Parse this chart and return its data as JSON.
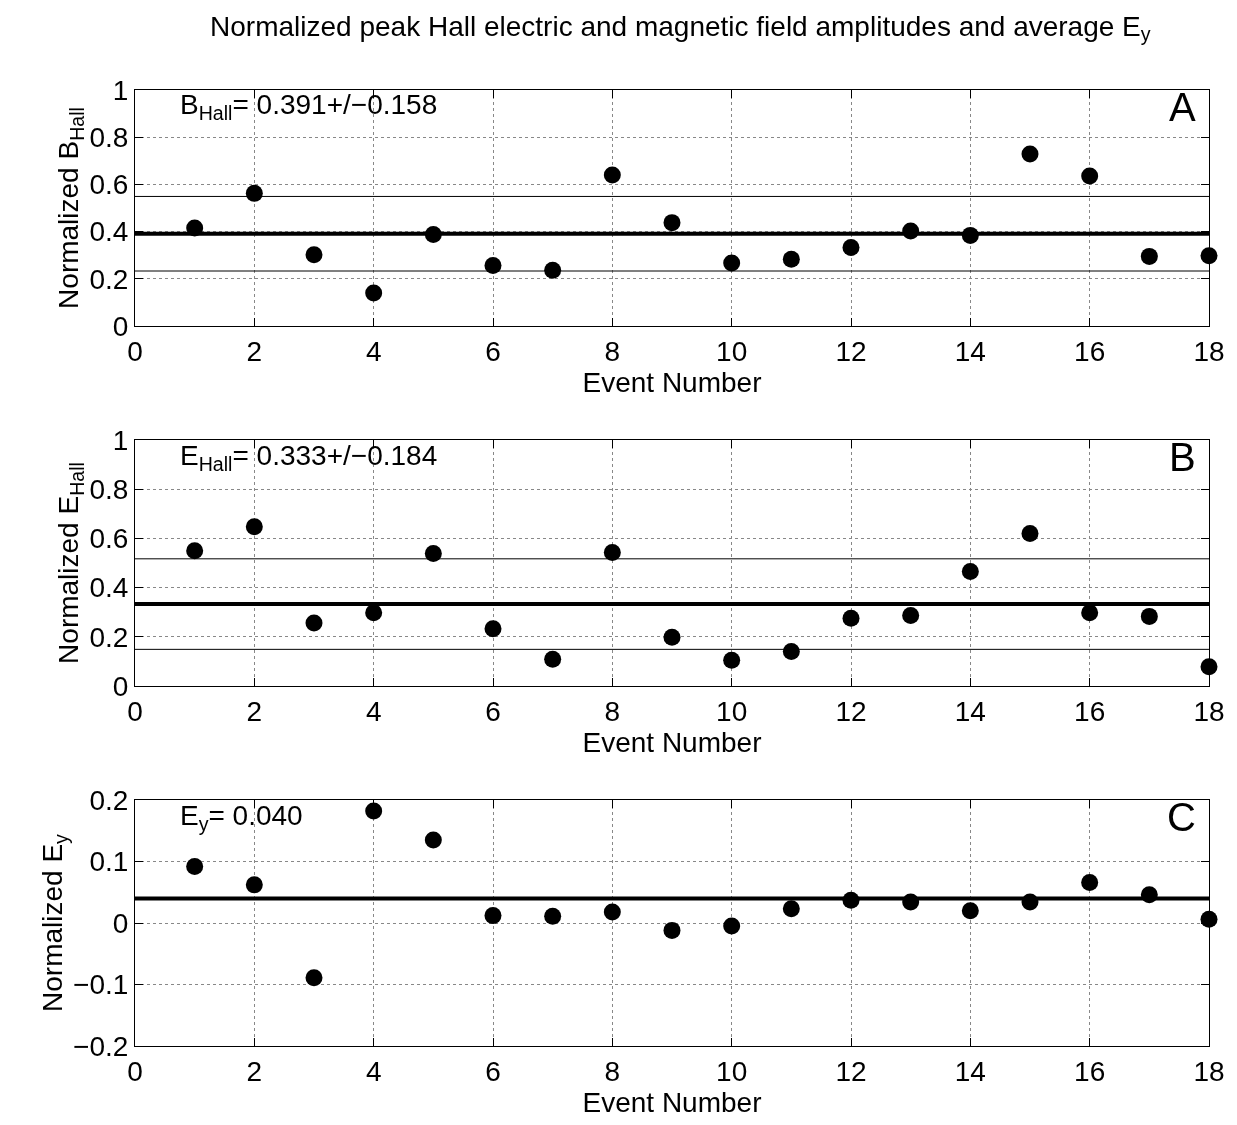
{
  "chart_data": [
    {
      "type": "scatter",
      "title": "Normalized peak Hall electric and magnetic field amplitudes and average E$_{y}$",
      "xlabel": "Event Number",
      "ylabel": "Normalized B$_{Hall}$",
      "x": [
        1,
        2,
        3,
        4,
        5,
        6,
        7,
        8,
        9,
        10,
        11,
        12,
        13,
        14,
        15,
        16,
        17,
        18
      ],
      "series": [
        {
          "color": "#000000",
          "values": [
            0.415,
            0.562,
            0.302,
            0.14,
            0.388,
            0.256,
            0.236,
            0.64,
            0.438,
            0.267,
            0.283,
            0.333,
            0.403,
            0.384,
            0.729,
            0.636,
            0.295,
            0.298
          ]
        }
      ],
      "xlim": [
        0,
        18
      ],
      "xticks": [
        0,
        2,
        4,
        6,
        8,
        10,
        12,
        14,
        16,
        18
      ],
      "ylim": [
        0,
        1
      ],
      "yticks": [
        0,
        0.2,
        0.4,
        0.6,
        0.8,
        1
      ],
      "grid": true,
      "marker": "circle",
      "ref_lines": [
        {
          "axis": "y",
          "value": 0.391,
          "color": "#000000"
        },
        {
          "axis": "y",
          "value": 0.549,
          "color": "#000000"
        },
        {
          "axis": "y",
          "value": 0.233,
          "color": "#000000"
        }
      ],
      "annotations": [
        "B$_{Hall}$= 0.391+/−0.158",
        "A"
      ]
    },
    {
      "type": "scatter",
      "xlabel": "Event Number",
      "ylabel": "Normalized E$_{Hall}$",
      "x": [
        1,
        2,
        3,
        4,
        5,
        6,
        7,
        8,
        9,
        10,
        11,
        12,
        13,
        14,
        15,
        16,
        17,
        18
      ],
      "series": [
        {
          "color": "#000000",
          "values": [
            0.55,
            0.647,
            0.256,
            0.298,
            0.539,
            0.233,
            0.109,
            0.543,
            0.198,
            0.105,
            0.14,
            0.275,
            0.287,
            0.465,
            0.62,
            0.298,
            0.283,
            0.078
          ]
        }
      ],
      "xlim": [
        0,
        18
      ],
      "xticks": [
        0,
        2,
        4,
        6,
        8,
        10,
        12,
        14,
        16,
        18
      ],
      "ylim": [
        0,
        1
      ],
      "yticks": [
        0,
        0.2,
        0.4,
        0.6,
        0.8,
        1
      ],
      "grid": true,
      "marker": "circle",
      "ref_lines": [
        {
          "axis": "y",
          "value": 0.333,
          "color": "#000000"
        },
        {
          "axis": "y",
          "value": 0.517,
          "color": "#000000"
        },
        {
          "axis": "y",
          "value": 0.149,
          "color": "#000000"
        }
      ],
      "annotations": [
        "E$_{Hall}$= 0.333+/−0.184",
        "B"
      ]
    },
    {
      "type": "scatter",
      "xlabel": "Event Number",
      "ylabel": "Normalized E$_{y}$",
      "x": [
        1,
        2,
        3,
        4,
        5,
        6,
        7,
        8,
        9,
        10,
        11,
        12,
        13,
        14,
        15,
        16,
        17,
        18
      ],
      "series": [
        {
          "color": "#000000",
          "values": [
            0.092,
            0.062,
            -0.089,
            0.182,
            0.135,
            0.012,
            0.011,
            0.018,
            -0.012,
            -0.005,
            0.023,
            0.037,
            0.034,
            0.02,
            0.034,
            0.066,
            0.046,
            0.006
          ]
        }
      ],
      "xlim": [
        0,
        18
      ],
      "xticks": [
        0,
        2,
        4,
        6,
        8,
        10,
        12,
        14,
        16,
        18
      ],
      "ylim": [
        -0.2,
        0.2
      ],
      "yticks": [
        -0.2,
        -0.1,
        0,
        0.1,
        0.2
      ],
      "grid": true,
      "marker": "circle",
      "ref_lines": [
        {
          "axis": "y",
          "value": 0.04,
          "color": "#000000"
        }
      ],
      "annotations": [
        "E$_{y}$= 0.040",
        "C"
      ]
    }
  ]
}
